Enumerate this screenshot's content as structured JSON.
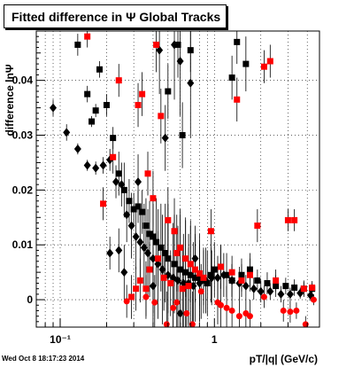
{
  "chart_data": {
    "type": "scatter",
    "title": "Fitted difference in  Ψ   Global Tracks",
    "xlabel": "pT/|q| (GeV/c)",
    "ylabel": "difference lnΨ",
    "xscale": "log",
    "xlim": [
      0.07,
      4.8
    ],
    "ylim": [
      -0.005,
      0.049
    ],
    "grid": true,
    "x_tick_labels": [
      {
        "value": 0.1,
        "label": "10⁻¹"
      },
      {
        "value": 1,
        "label": "1"
      }
    ],
    "y_tick_labels": [
      {
        "value": 0,
        "label": "0"
      },
      {
        "value": 0.01,
        "label": "0.01"
      },
      {
        "value": 0.02,
        "label": "0.02"
      },
      {
        "value": 0.03,
        "label": "0.03"
      },
      {
        "value": 0.04,
        "label": "0.04"
      }
    ],
    "colors": {
      "black": "#000000",
      "red": "#ff0000",
      "grid": "#000000"
    },
    "series": [
      {
        "marker": "square",
        "color": "#000000",
        "points": [
          [
            0.13,
            0.0465,
            0.002
          ],
          [
            0.15,
            0.0375,
            0.0015
          ],
          [
            0.16,
            0.0325,
            0.001
          ],
          [
            0.17,
            0.0345,
            0.0012
          ],
          [
            0.18,
            0.042,
            0.0015
          ],
          [
            0.2,
            0.0355,
            0.002
          ],
          [
            0.22,
            0.0295,
            0.002
          ],
          [
            0.24,
            0.023,
            0.004
          ],
          [
            0.26,
            0.02,
            0.005
          ],
          [
            0.28,
            0.018,
            0.004
          ],
          [
            0.3,
            0.0165,
            0.003
          ],
          [
            0.32,
            0.017,
            0.003
          ],
          [
            0.34,
            0.016,
            0.004
          ],
          [
            0.36,
            0.0135,
            0.005
          ],
          [
            0.38,
            0.012,
            0.006
          ],
          [
            0.4,
            0.0115,
            0.006
          ],
          [
            0.42,
            0.0105,
            0.008
          ],
          [
            0.45,
            0.0095,
            0.008
          ],
          [
            0.48,
            0.0085,
            0.009
          ],
          [
            0.5,
            0.0075,
            0.01
          ],
          [
            0.55,
            0.0065,
            0.009
          ],
          [
            0.6,
            0.0055,
            0.01
          ],
          [
            0.65,
            0.005,
            0.01
          ],
          [
            0.7,
            0.0045,
            0.01
          ],
          [
            0.75,
            0.004,
            0.008
          ],
          [
            0.8,
            0.004,
            0.008
          ],
          [
            0.85,
            0.0035,
            0.006
          ],
          [
            0.9,
            0.003,
            0.006
          ],
          [
            0.95,
            0.0045,
            0.005
          ],
          [
            1.0,
            0.0055,
            0.005
          ],
          [
            1.1,
            0.006,
            0.004
          ],
          [
            1.2,
            0.0045,
            0.004
          ],
          [
            1.3,
            0.0035,
            0.003
          ],
          [
            1.5,
            0.0045,
            0.003
          ],
          [
            1.7,
            0.0055,
            0.003
          ],
          [
            1.9,
            0.0035,
            0.002
          ],
          [
            2.2,
            0.003,
            0.002
          ],
          [
            2.5,
            0.0025,
            0.002
          ],
          [
            2.9,
            0.0025,
            0.0015
          ],
          [
            3.3,
            0.0022,
            0.0015
          ],
          [
            3.8,
            0.002,
            0.0012
          ],
          [
            4.3,
            0.002,
            0.001
          ],
          [
            0.58,
            0.0465,
            0.006
          ],
          [
            0.5,
            0.038,
            0.005
          ],
          [
            1.4,
            0.047,
            0.004
          ],
          [
            1.6,
            0.043,
            0.005
          ],
          [
            0.7,
            0.0455,
            0.004
          ],
          [
            0.62,
            0.03,
            0.006
          ],
          [
            1.3,
            0.0405,
            0.004
          ]
        ]
      },
      {
        "marker": "diamond",
        "color": "#000000",
        "points": [
          [
            0.09,
            0.035,
            0.0015
          ],
          [
            0.11,
            0.0305,
            0.0015
          ],
          [
            0.13,
            0.0275,
            0.001
          ],
          [
            0.15,
            0.0245,
            0.001
          ],
          [
            0.17,
            0.024,
            0.0012
          ],
          [
            0.19,
            0.0245,
            0.0015
          ],
          [
            0.21,
            0.0255,
            0.002
          ],
          [
            0.23,
            0.0215,
            0.003
          ],
          [
            0.25,
            0.021,
            0.004
          ],
          [
            0.27,
            0.0155,
            0.005
          ],
          [
            0.29,
            0.0135,
            0.006
          ],
          [
            0.31,
            0.0115,
            0.006
          ],
          [
            0.33,
            0.0105,
            0.007
          ],
          [
            0.35,
            0.0095,
            0.008
          ],
          [
            0.37,
            0.0085,
            0.008
          ],
          [
            0.4,
            0.0075,
            0.01
          ],
          [
            0.43,
            0.0065,
            0.01
          ],
          [
            0.46,
            0.0055,
            0.01
          ],
          [
            0.5,
            0.0045,
            0.01
          ],
          [
            0.54,
            0.004,
            0.01
          ],
          [
            0.58,
            0.0035,
            0.01
          ],
          [
            0.63,
            0.003,
            0.009
          ],
          [
            0.68,
            0.003,
            0.009
          ],
          [
            0.73,
            0.0025,
            0.008
          ],
          [
            0.8,
            0.003,
            0.007
          ],
          [
            0.88,
            0.0035,
            0.006
          ],
          [
            0.96,
            0.004,
            0.005
          ],
          [
            1.05,
            0.004,
            0.004
          ],
          [
            1.15,
            0.0045,
            0.004
          ],
          [
            1.3,
            0.0035,
            0.003
          ],
          [
            1.45,
            0.003,
            0.003
          ],
          [
            1.6,
            0.0025,
            0.002
          ],
          [
            1.8,
            0.002,
            0.002
          ],
          [
            2.0,
            0.0015,
            0.002
          ],
          [
            2.3,
            0.0015,
            0.0015
          ],
          [
            2.7,
            0.001,
            0.0015
          ],
          [
            3.1,
            0.001,
            0.0012
          ],
          [
            3.6,
            0.0012,
            0.001
          ],
          [
            4.2,
            0.0008,
            0.001
          ],
          [
            0.24,
            0.009,
            0.004
          ],
          [
            0.21,
            0.0085,
            0.003
          ],
          [
            0.26,
            0.005,
            0.005
          ],
          [
            0.55,
            0.0465,
            0.01
          ],
          [
            0.6,
            0.0435,
            0.01
          ],
          [
            0.7,
            0.0395,
            0.01
          ],
          [
            0.44,
            0.0455,
            0.008
          ],
          [
            0.48,
            0.0295,
            0.006
          ],
          [
            0.32,
            0.0215,
            0.005
          ],
          [
            0.75,
            0.0075,
            0.006
          ],
          [
            0.4,
            0.0025,
            0.007
          ],
          [
            0.6,
            -0.0025,
            0.006
          ]
        ]
      },
      {
        "marker": "square",
        "color": "#ff0000",
        "points": [
          [
            0.15,
            0.048,
            0.002
          ],
          [
            0.19,
            0.0175,
            0.003
          ],
          [
            0.22,
            0.026,
            0.003
          ],
          [
            0.24,
            0.04,
            0.003
          ],
          [
            0.32,
            0.0355,
            0.004
          ],
          [
            0.34,
            0.0375,
            0.004
          ],
          [
            0.37,
            0.023,
            0.004
          ],
          [
            0.4,
            0.0185,
            0.005
          ],
          [
            0.42,
            0.0465,
            0.005
          ],
          [
            0.45,
            0.0335,
            0.005
          ],
          [
            0.5,
            0.0145,
            0.006
          ],
          [
            0.55,
            0.0125,
            0.006
          ],
          [
            0.6,
            0.0095,
            0.007
          ],
          [
            0.65,
            0.0075,
            0.007
          ],
          [
            0.7,
            0.0065,
            0.007
          ],
          [
            0.75,
            0.0055,
            0.006
          ],
          [
            0.8,
            0.0048,
            0.006
          ],
          [
            0.85,
            0.004,
            0.005
          ],
          [
            0.95,
            0.0125,
            0.004
          ],
          [
            1.1,
            0.006,
            0.004
          ],
          [
            1.3,
            0.005,
            0.003
          ],
          [
            1.4,
            0.0365,
            0.004
          ],
          [
            1.5,
            0.0035,
            0.003
          ],
          [
            1.7,
            0.0045,
            0.003
          ],
          [
            1.9,
            0.0135,
            0.003
          ],
          [
            2.1,
            0.0425,
            0.003
          ],
          [
            2.3,
            0.0435,
            0.003
          ],
          [
            2.5,
            0.0035,
            0.002
          ],
          [
            3.0,
            0.0145,
            0.002
          ],
          [
            3.3,
            0.0145,
            0.002
          ],
          [
            3.8,
            0.002,
            0.0015
          ],
          [
            4.3,
            0.0022,
            0.0012
          ],
          [
            0.29,
            0.0005,
            0.004
          ],
          [
            0.31,
            0.002,
            0.004
          ],
          [
            0.33,
            0.0035,
            0.004
          ],
          [
            0.36,
            0.002,
            0.005
          ],
          [
            0.38,
            0.0055,
            0.005
          ],
          [
            0.43,
            0.0075,
            0.005
          ],
          [
            0.47,
            0.004,
            0.006
          ],
          [
            0.52,
            0.003,
            0.006
          ],
          [
            0.57,
            0.0085,
            0.007
          ],
          [
            0.62,
            0.002,
            0.007
          ],
          [
            0.68,
            0.0025,
            0.007
          ]
        ]
      },
      {
        "marker": "circle",
        "color": "#ff0000",
        "points": [
          [
            0.27,
            -0.0003,
            0.003
          ],
          [
            0.36,
            0.0005,
            0.004
          ],
          [
            0.41,
            -0.0005,
            0.005
          ],
          [
            0.49,
            -0.0045,
            0.006
          ],
          [
            0.57,
            -0.0005,
            0.006
          ],
          [
            0.72,
            -0.0045,
            0.006
          ],
          [
            0.82,
            0.0015,
            0.005
          ],
          [
            1.05,
            -0.0005,
            0.004
          ],
          [
            1.2,
            -0.0015,
            0.004
          ],
          [
            1.3,
            -0.002,
            0.004
          ],
          [
            1.45,
            -0.003,
            0.003
          ],
          [
            1.7,
            -0.003,
            0.003
          ],
          [
            2.1,
            0.0005,
            0.002
          ],
          [
            2.8,
            -0.002,
            0.002
          ],
          [
            3.1,
            -0.0022,
            0.002
          ],
          [
            3.4,
            -0.002,
            0.0015
          ],
          [
            3.9,
            -0.0045,
            0.0015
          ],
          [
            4.4,
            0.0,
            0.001
          ],
          [
            0.54,
            -0.0015,
            0.005
          ],
          [
            0.66,
            -0.0025,
            0.006
          ],
          [
            1.1,
            -0.001,
            0.004
          ],
          [
            1.6,
            -0.0025,
            0.003
          ]
        ]
      }
    ]
  },
  "footer": "Wed Oct  8 18:17:23 2014"
}
